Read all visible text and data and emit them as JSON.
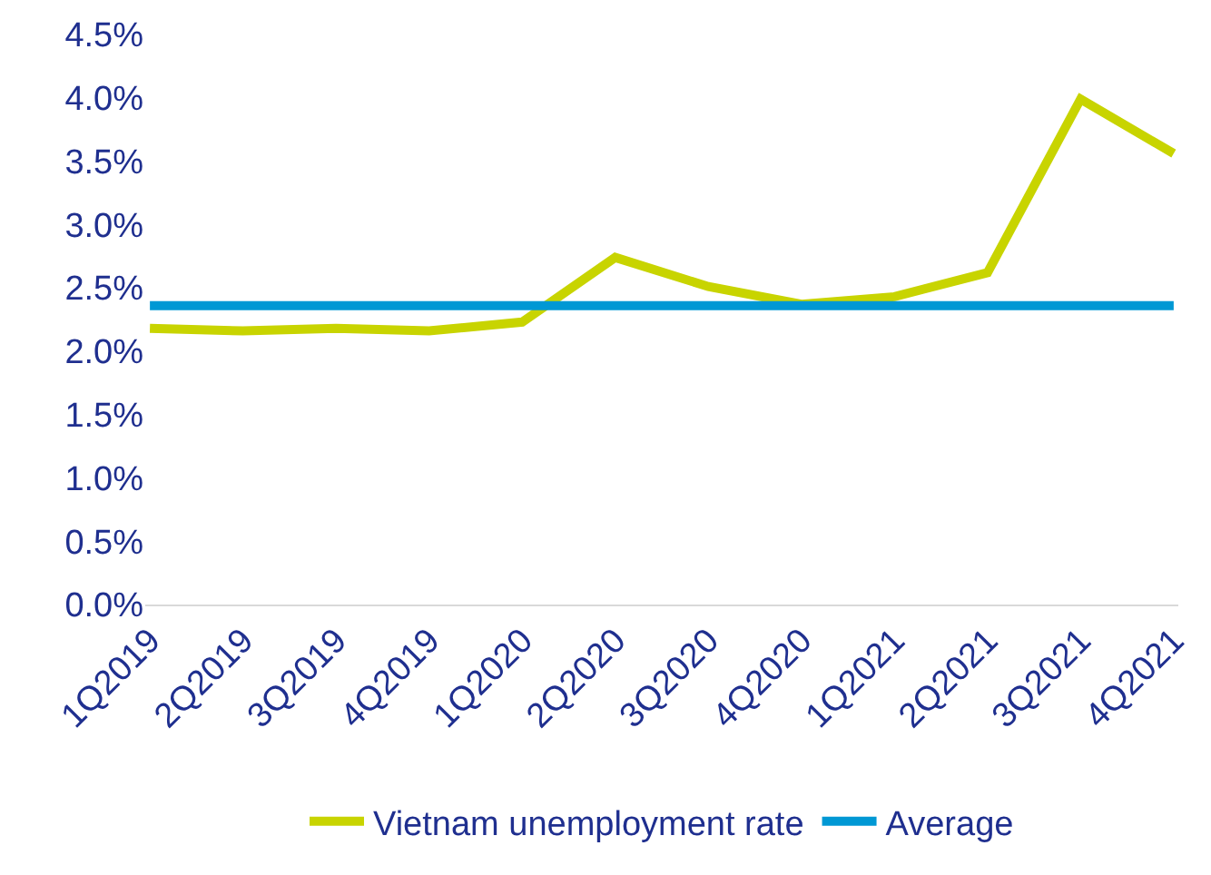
{
  "chart_data": {
    "type": "line",
    "categories": [
      "1Q2019",
      "2Q2019",
      "3Q2019",
      "4Q2019",
      "1Q2020",
      "2Q2020",
      "3Q2020",
      "4Q2020",
      "1Q2021",
      "2Q2021",
      "3Q2021",
      "4Q2021"
    ],
    "series": [
      {
        "name": "Vietnam unemployment rate",
        "color": "#c8d400",
        "values": [
          2.18,
          2.16,
          2.18,
          2.16,
          2.23,
          2.74,
          2.51,
          2.37,
          2.43,
          2.62,
          3.99,
          3.56
        ]
      },
      {
        "name": "Average",
        "color": "#0098d4",
        "values": [
          2.36,
          2.36,
          2.36,
          2.36,
          2.36,
          2.36,
          2.36,
          2.36,
          2.36,
          2.36,
          2.36,
          2.36
        ]
      }
    ],
    "ylim": [
      0,
      4.5
    ],
    "yticks": [
      {
        "value": 0,
        "label": "0.0%"
      },
      {
        "value": 0.5,
        "label": "0.5%"
      },
      {
        "value": 1,
        "label": "1.0%"
      },
      {
        "value": 1.5,
        "label": "1.5%"
      },
      {
        "value": 2,
        "label": "2.0%"
      },
      {
        "value": 2.5,
        "label": "2.5%"
      },
      {
        "value": 3,
        "label": "3.0%"
      },
      {
        "value": 3.5,
        "label": "3.5%"
      },
      {
        "value": 4,
        "label": "4.0%"
      },
      {
        "value": 4.5,
        "label": "4.5%"
      }
    ],
    "legend": "bottom",
    "marker": "none",
    "line_style": "solid"
  }
}
